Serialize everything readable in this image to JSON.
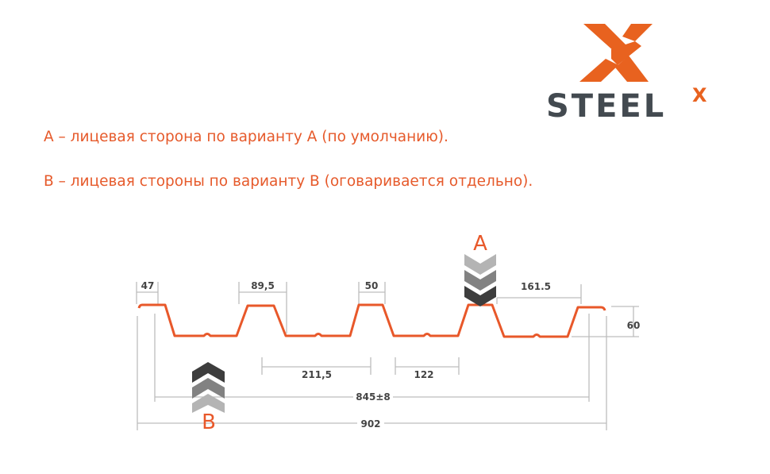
{
  "brand": {
    "name": "STEEL",
    "superscript": "X",
    "colors": {
      "orange": "#e8621f",
      "gray": "#434a50"
    }
  },
  "notes": {
    "line_a": "А – лицевая сторона по варианту А (по умолчанию).",
    "line_b": "В – лицевая стороны по варианту В (оговаривается отдельно)."
  },
  "diagram": {
    "profile_color": "#e8582a",
    "side_a_label": "A",
    "side_b_label": "B",
    "dimensions": {
      "d47": "47",
      "d89": "89,5",
      "d50": "50",
      "d161": "161.5",
      "d60": "60",
      "d211": "211,5",
      "d122": "122",
      "d845": "845±8",
      "d902": "902"
    }
  }
}
